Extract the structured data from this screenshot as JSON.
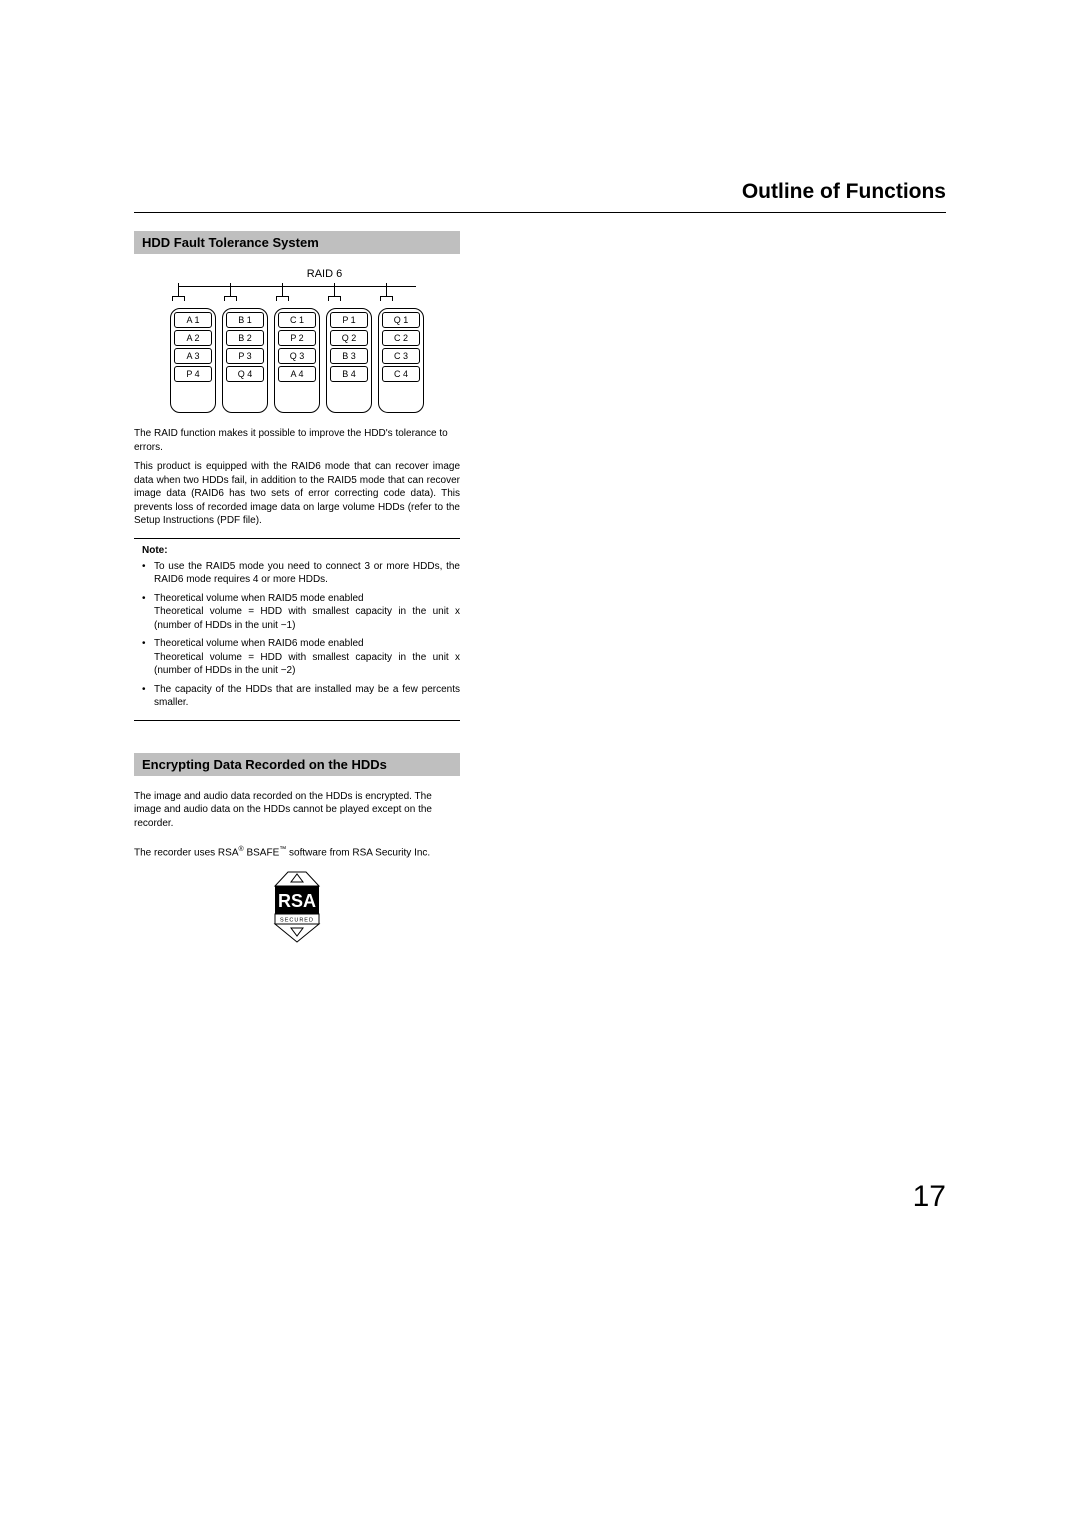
{
  "page": {
    "title": "Outline of Functions",
    "number": "17"
  },
  "section1": {
    "header": "HDD Fault Tolerance System",
    "raid_label": "RAID 6",
    "disks": [
      [
        "A 1",
        "A 2",
        "A 3",
        "P 4"
      ],
      [
        "B 1",
        "B 2",
        "P 3",
        "Q 4"
      ],
      [
        "C 1",
        "P 2",
        "Q 3",
        "A 4"
      ],
      [
        "P 1",
        "Q 2",
        "B 3",
        "B 4"
      ],
      [
        "Q 1",
        "C 2",
        "C 3",
        "C 4"
      ]
    ],
    "para1": "The RAID function makes it possible to improve the HDD's tolerance to errors.",
    "para2": "This product is equipped with the RAID6 mode that can recover image data when two HDDs fail, in addition to the RAID5 mode that can recover image data (RAID6 has two sets of error correcting code data). This prevents loss of recorded image data on large volume HDDs (refer to the Setup Instructions (PDF file).",
    "note_title": "Note:",
    "notes": [
      "To use the RAID5 mode you need to connect 3 or more HDDs, the RAID6 mode requires 4 or more HDDs.",
      "Theoretical volume when RAID5 mode enabled\nTheoretical volume = HDD with smallest capacity in the unit x (number of HDDs in the unit −1)",
      "Theoretical volume when RAID6 mode enabled\nTheoretical volume = HDD with smallest capacity in the unit x (number of HDDs in the unit −2)",
      "The capacity of the HDDs that are installed may be a few percents smaller."
    ]
  },
  "section2": {
    "header": "Encrypting Data Recorded on the HDDs",
    "para1": "The image and audio data recorded on the HDDs is encrypted. The image and audio data on the HDDs cannot be played except on the recorder.",
    "rsa_prefix": "The recorder uses RSA",
    "rsa_mid": " BSAFE",
    "rsa_suffix": " software from RSA Security Inc.",
    "logo": {
      "top": "RSA",
      "bottom": "SECURED"
    }
  },
  "colors": {
    "header_bg": "#bfbfbf",
    "text": "#000000",
    "bg": "#ffffff"
  }
}
